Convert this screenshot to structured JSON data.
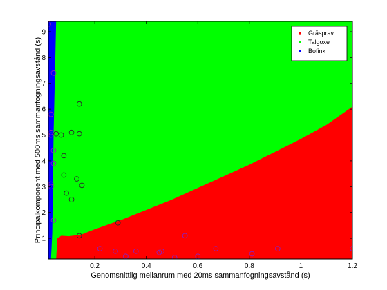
{
  "chart_data": {
    "type": "scatter",
    "title": "",
    "xlabel": "Genomsnittlig mellanrum med 20ms sammanfogningsavstånd (s)",
    "ylabel": "Principalkomponent med 500ms sammanfogningsavstånd (s)",
    "xlim": [
      0.02,
      1.2
    ],
    "ylim": [
      0.2,
      9.4
    ],
    "xticks": [
      0.2,
      0.4,
      0.6,
      0.8,
      1,
      1.2
    ],
    "xtick_labels": [
      "0.2",
      "0.4",
      "0.6",
      "0.8",
      "1",
      "1.2"
    ],
    "yticks": [
      1,
      2,
      3,
      4,
      5,
      6,
      7,
      8,
      9
    ],
    "ytick_labels": [
      "1",
      "2",
      "3",
      "4",
      "5",
      "6",
      "7",
      "8",
      "9"
    ],
    "grid": false,
    "legend_position": "top-right",
    "legend": [
      {
        "label": "Gråsprav",
        "color": "#ff0000"
      },
      {
        "label": "Talgoxe",
        "color": "#00ff00"
      },
      {
        "label": "Bofink",
        "color": "#0000ff"
      }
    ],
    "regions": [
      {
        "class": "Bofink",
        "color": "#0000ff",
        "boundary_right": [
          [
            0.02,
            9.4
          ],
          [
            0.05,
            9.4
          ],
          [
            0.04,
            5.0
          ],
          [
            0.035,
            1.2
          ],
          [
            0.03,
            0.2
          ],
          [
            0.02,
            0.2
          ]
        ]
      },
      {
        "class": "Talgoxe",
        "color": "#00ff00"
      },
      {
        "class": "Gråsprav",
        "color": "#ff0000",
        "boundary_top": [
          [
            0.05,
            0.2
          ],
          [
            0.055,
            1.0
          ],
          [
            0.07,
            1.1
          ],
          [
            0.1,
            1.08
          ],
          [
            0.15,
            1.15
          ],
          [
            0.2,
            1.35
          ],
          [
            0.3,
            1.7
          ],
          [
            0.4,
            2.1
          ],
          [
            0.5,
            2.5
          ],
          [
            0.6,
            2.95
          ],
          [
            0.7,
            3.4
          ],
          [
            0.8,
            3.85
          ],
          [
            0.9,
            4.35
          ],
          [
            1.0,
            4.85
          ],
          [
            1.1,
            5.4
          ],
          [
            1.2,
            6.1
          ]
        ]
      }
    ],
    "series": [
      {
        "name": "Bofink",
        "marker": "circle",
        "color": "#8a1fbd",
        "points": [
          [
            0.02,
            9.3
          ],
          [
            0.04,
            7.4
          ],
          [
            0.03,
            5.8
          ],
          [
            0.03,
            5.1
          ],
          [
            0.03,
            5.0
          ],
          [
            0.04,
            4.4
          ],
          [
            0.04,
            3.9
          ],
          [
            0.03,
            3.1
          ],
          [
            0.03,
            3.0
          ],
          [
            0.04,
            1.7
          ],
          [
            0.22,
            0.6
          ],
          [
            0.28,
            0.5
          ],
          [
            0.32,
            0.3
          ],
          [
            0.36,
            0.5
          ],
          [
            0.46,
            0.5
          ],
          [
            0.51,
            0.25
          ],
          [
            0.6,
            0.3
          ],
          [
            0.67,
            0.6
          ],
          [
            0.81,
            0.4
          ],
          [
            0.91,
            0.6
          ],
          [
            1.2,
            0.6
          ],
          [
            0.55,
            1.1
          ],
          [
            0.45,
            0.45
          ]
        ]
      },
      {
        "name": "Talgoxe",
        "marker": "circle",
        "color": "#2a2a2a",
        "points": [
          [
            0.14,
            6.2
          ],
          [
            0.05,
            5.05
          ],
          [
            0.07,
            5.0
          ],
          [
            0.11,
            5.1
          ],
          [
            0.14,
            5.05
          ],
          [
            0.08,
            4.2
          ],
          [
            0.13,
            3.3
          ],
          [
            0.08,
            3.45
          ],
          [
            0.15,
            3.05
          ],
          [
            0.09,
            2.75
          ],
          [
            0.11,
            2.5
          ],
          [
            0.29,
            1.6
          ],
          [
            0.14,
            1.1
          ]
        ]
      }
    ]
  }
}
